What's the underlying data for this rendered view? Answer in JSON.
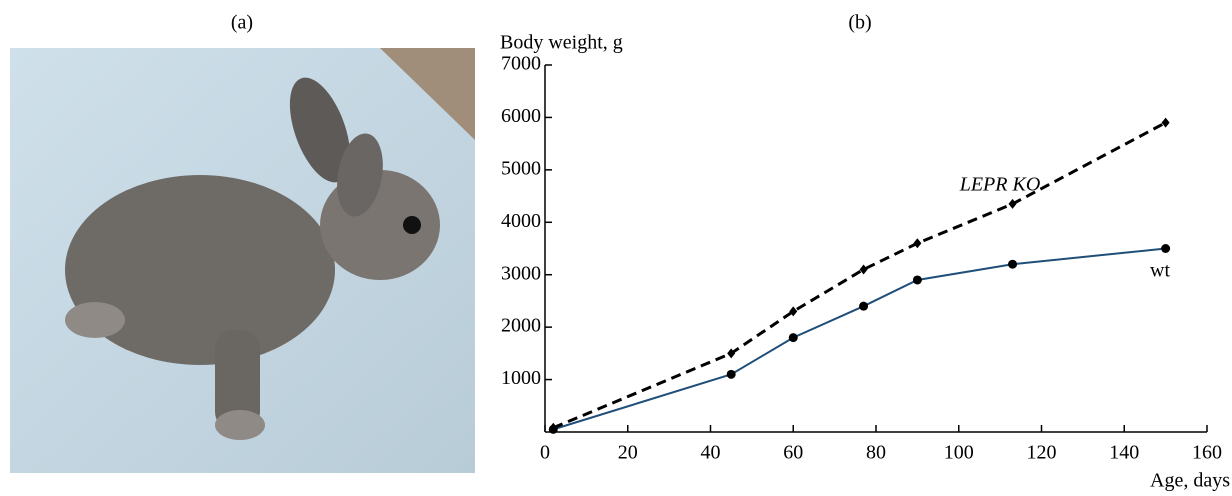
{
  "figure": {
    "panel_a_label": "(a)"
  },
  "chart_data": {
    "type": "line",
    "title": "(b)",
    "y_label": "Body weight, g",
    "x_label": "Age, days",
    "xlim": [
      0,
      160
    ],
    "xticks": [
      0,
      20,
      40,
      60,
      80,
      100,
      120,
      140,
      160
    ],
    "ylim": [
      0,
      7000
    ],
    "yticks": [
      1000,
      2000,
      3000,
      4000,
      5000,
      6000,
      7000
    ],
    "grid": false,
    "series": [
      {
        "name": "wt",
        "color": "#1f4e79",
        "dash": false,
        "marker": "circle",
        "x": [
          2,
          45,
          60,
          77,
          90,
          113,
          150
        ],
        "values": [
          50,
          1100,
          1800,
          2400,
          2900,
          3200,
          3500
        ]
      },
      {
        "name": "LEPR KO",
        "color": "#000000",
        "dash": true,
        "marker": "diamond",
        "x": [
          2,
          45,
          60,
          77,
          90,
          113,
          150
        ],
        "values": [
          80,
          1500,
          2300,
          3100,
          3600,
          4350,
          5900
        ]
      }
    ]
  }
}
